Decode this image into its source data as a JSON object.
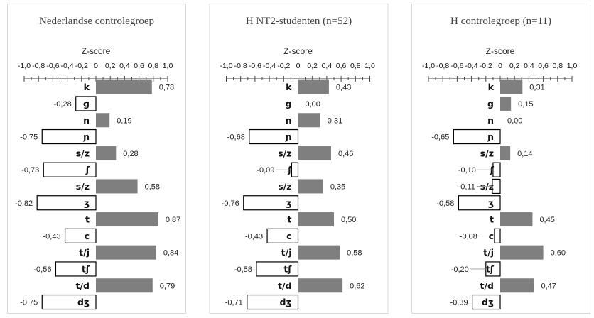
{
  "chart_data": [
    {
      "type": "bar",
      "orientation": "horizontal",
      "title": "Nederlandse controlegroep",
      "xlabel": "Z-score",
      "xlim": [
        -1.0,
        1.0
      ],
      "tick_labels": [
        "-1,0",
        "-0,8",
        "-0,6",
        "-0,4",
        "-0,2",
        "0",
        "0,2",
        "0,4",
        "0,6",
        "0,8",
        "1,0"
      ],
      "categories": [
        "k",
        "g",
        "n",
        "ɲ",
        "s/z",
        "ʃ",
        "s/z",
        "ʒ",
        "t",
        "c",
        "t/j",
        "tʃ",
        "t/d",
        "dʒ"
      ],
      "values": [
        0.78,
        -0.28,
        0.19,
        -0.75,
        0.28,
        -0.73,
        0.58,
        -0.82,
        0.87,
        -0.43,
        0.84,
        -0.56,
        0.79,
        -0.75
      ],
      "value_labels": [
        "0,78",
        "-0,28",
        "0,19",
        "-0,75",
        "0,28",
        "-0,73",
        "0,58",
        "-0,82",
        "0,87",
        "-0,43",
        "0,84",
        "-0,56",
        "0,79",
        "-0,75"
      ],
      "colors": {
        "positive": "#7f7f7f",
        "negative": "#ffffff"
      }
    },
    {
      "type": "bar",
      "orientation": "horizontal",
      "title": "H NT2-studenten (n=52)",
      "xlabel": "Z-score",
      "xlim": [
        -1.0,
        1.0
      ],
      "tick_labels": [
        "-1,0",
        "-0,8",
        "-0,6",
        "-0,4",
        "-0,2",
        "0",
        "0,2",
        "0,4",
        "0,6",
        "0,8",
        "1,0"
      ],
      "categories": [
        "k",
        "g",
        "n",
        "ɲ",
        "s/z",
        "ʃ",
        "s/z",
        "ʒ",
        "t",
        "c",
        "t/j",
        "tʃ",
        "t/d",
        "dʒ"
      ],
      "values": [
        0.43,
        0.0,
        0.31,
        -0.68,
        0.46,
        -0.09,
        0.35,
        -0.76,
        0.5,
        -0.43,
        0.58,
        -0.58,
        0.62,
        -0.71
      ],
      "value_labels": [
        "0,43",
        "0,00",
        "0,31",
        "-0,68",
        "0,46",
        "-0,09",
        "0,35",
        "-0,76",
        "0,50",
        "-0,43",
        "0,58",
        "-0,58",
        "0,62",
        "-0,71"
      ],
      "colors": {
        "positive": "#7f7f7f",
        "negative": "#ffffff"
      }
    },
    {
      "type": "bar",
      "orientation": "horizontal",
      "title": "H controlegroep (n=11)",
      "xlabel": "Z-score",
      "xlim": [
        -1.0,
        1.0
      ],
      "tick_labels": [
        "-1,0",
        "-0,8",
        "-0,6",
        "-0,4",
        "-0,2",
        "0",
        "0,2",
        "0,4",
        "0,6",
        "0,8",
        "1,0"
      ],
      "categories": [
        "k",
        "g",
        "n",
        "ɲ",
        "s/z",
        "ʃ",
        "s/z",
        "ʒ",
        "t",
        "c",
        "t/j",
        "tʃ",
        "t/d",
        "dʒ"
      ],
      "values": [
        0.31,
        0.15,
        0.0,
        -0.65,
        0.14,
        -0.1,
        -0.11,
        -0.58,
        0.45,
        -0.08,
        0.6,
        -0.2,
        0.47,
        -0.39
      ],
      "value_labels": [
        "0,31",
        "0,15",
        "0,00",
        "-0,65",
        "0,14",
        "-0,10",
        "-0,11",
        "-0,58",
        "0,45",
        "-0,08",
        "0,60",
        "-0,20",
        "0,47",
        "-0,39"
      ],
      "colors": {
        "positive": "#7f7f7f",
        "negative": "#ffffff"
      }
    }
  ]
}
